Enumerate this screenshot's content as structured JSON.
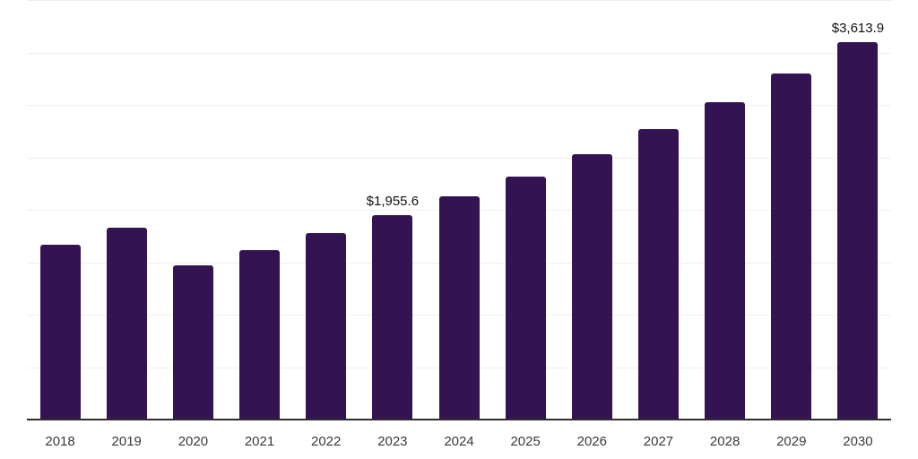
{
  "chart_data": {
    "type": "bar",
    "categories": [
      "2018",
      "2019",
      "2020",
      "2021",
      "2022",
      "2023",
      "2024",
      "2025",
      "2026",
      "2027",
      "2028",
      "2029",
      "2030"
    ],
    "values": [
      1679,
      1836,
      1476,
      1628,
      1784,
      1955.6,
      2135,
      2330.8,
      2544.6,
      2777.9,
      3032.7,
      3310.9,
      3613.9
    ],
    "bar_labels": [
      "",
      "",
      "",
      "",
      "",
      "$1,955.6",
      "",
      "",
      "",
      "",
      "",
      "",
      "$3,613.9"
    ],
    "title": "",
    "xlabel": "",
    "ylabel": "",
    "ylim": [
      0,
      4000
    ],
    "gridline_step": 500,
    "grid": true,
    "legend": false,
    "colors": {
      "bar": "#341352",
      "gridline": "#efefef",
      "axis_line": "#2e2e2e",
      "bar_label_text": "#111111",
      "tick_label_text": "#3a3a3a",
      "background": "#ffffff"
    }
  }
}
